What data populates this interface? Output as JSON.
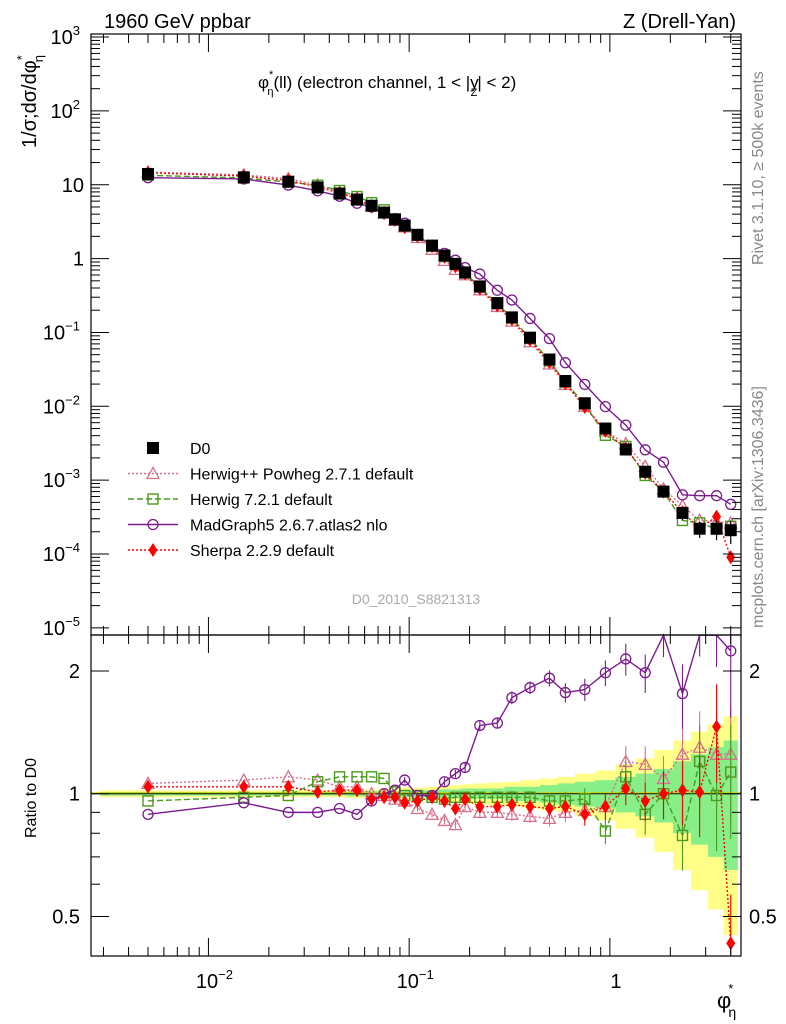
{
  "header": {
    "left_label": "1960 GeV ppbar",
    "right_label": "Z (Drell-Yan)",
    "plot_title": "φ*η(ll) (electron channel, 1 < |yZ| < 2)",
    "plot_title_phi": "φ",
    "plot_title_star": "*",
    "plot_title_eta": "η",
    "plot_title_mid": "(ll) (electron channel, 1 < |",
    "plot_title_y": "y",
    "plot_title_z": "Z",
    "plot_title_end": "| < 2)"
  },
  "side_labels": {
    "rivet": "Rivet 3.1.10, ≥ 500k events",
    "mcplots": "mcplots.cern.ch [arXiv:1306.3436]"
  },
  "watermark": "D0_2010_S8821313",
  "axes": {
    "top_ylabel": "1/σ;dσ/dφ*η",
    "top_ylabel_main": "1/σ;dσ/dφ",
    "top_ylabel_star": "*",
    "top_ylabel_eta": "η",
    "bottom_ylabel": "Ratio to D0",
    "xlabel_phi": "φ",
    "xlabel_star": "*",
    "xlabel_eta": "η",
    "x_ticks": [
      {
        "v": 0.01,
        "b": "10",
        "e": "−2"
      },
      {
        "v": 0.1,
        "b": "10",
        "e": "−1"
      },
      {
        "v": 1,
        "b": "1",
        "e": ""
      }
    ],
    "y_ticks_top": [
      {
        "v": 1e-05,
        "b": "10",
        "e": "−5"
      },
      {
        "v": 0.0001,
        "b": "10",
        "e": "−4"
      },
      {
        "v": 0.001,
        "b": "10",
        "e": "−3"
      },
      {
        "v": 0.01,
        "b": "10",
        "e": "−2"
      },
      {
        "v": 0.1,
        "b": "10",
        "e": "−1"
      },
      {
        "v": 1,
        "b": "1",
        "e": ""
      },
      {
        "v": 10,
        "b": "10",
        "e": ""
      },
      {
        "v": 100,
        "b": "10",
        "e": "2"
      },
      {
        "v": 1000,
        "b": "10",
        "e": "3"
      }
    ],
    "y_ticks_ratio": [
      "0.5",
      "1",
      "2"
    ]
  },
  "legend": [
    {
      "label": "D0",
      "color": "#000000",
      "marker": "square-filled"
    },
    {
      "label": "Herwig++ Powheg 2.7.1 default",
      "color": "#d66f8c",
      "marker": "triangle-open",
      "dash": "2,2"
    },
    {
      "label": "Herwig 7.2.1 default",
      "color": "#4a9a1c",
      "marker": "square-open",
      "dash": "6,3"
    },
    {
      "label": "MadGraph5 2.6.7.atlas2 nlo",
      "color": "#7b1c8e",
      "marker": "circle-open",
      "dash": ""
    },
    {
      "label": "Sherpa 2.2.9 default",
      "color": "#ff0000",
      "marker": "diamond-filled",
      "dash": "2,2"
    }
  ],
  "chart_data": {
    "type": "line",
    "log_x": true,
    "log_y_top": true,
    "log_y_ratio": true,
    "xlim": [
      0.0026,
      4.5
    ],
    "ylim_top": [
      8e-06,
      1100
    ],
    "ylim_ratio": [
      0.4,
      2.45
    ],
    "x": [
      0.005,
      0.015,
      0.025,
      0.035,
      0.045,
      0.055,
      0.065,
      0.075,
      0.085,
      0.095,
      0.11,
      0.13,
      0.15,
      0.17,
      0.19,
      0.225,
      0.275,
      0.325,
      0.4,
      0.5,
      0.6,
      0.75,
      0.95,
      1.2,
      1.5,
      1.85,
      2.3,
      2.8,
      3.4,
      4.0
    ],
    "data": {
      "name": "D0",
      "values": [
        14.0,
        12.6,
        11.0,
        9.2,
        7.6,
        6.3,
        5.2,
        4.2,
        3.4,
        2.8,
        2.1,
        1.5,
        1.1,
        0.85,
        0.65,
        0.42,
        0.25,
        0.16,
        0.085,
        0.043,
        0.022,
        0.011,
        0.005,
        0.0026,
        0.0013,
        0.0007,
        0.00036,
        0.00022,
        0.00022,
        0.00021
      ],
      "rel_uncertainty": [
        0.01,
        0.01,
        0.01,
        0.01,
        0.01,
        0.015,
        0.015,
        0.015,
        0.015,
        0.02,
        0.02,
        0.02,
        0.025,
        0.025,
        0.03,
        0.03,
        0.03,
        0.04,
        0.04,
        0.05,
        0.06,
        0.07,
        0.08,
        0.1,
        0.12,
        0.15,
        0.2,
        0.25,
        0.3,
        0.35
      ]
    },
    "series": [
      {
        "name": "Herwig++ Powheg 2.7.1 default",
        "ratio": [
          1.06,
          1.08,
          1.1,
          1.08,
          1.04,
          1.04,
          1.0,
          0.99,
          0.97,
          0.96,
          0.92,
          0.89,
          0.86,
          0.84,
          0.93,
          0.9,
          0.9,
          0.89,
          0.88,
          0.87,
          0.9,
          0.91,
          0.93,
          1.2,
          1.18,
          1.09,
          1.25,
          1.3,
          1.25,
          1.25
        ]
      },
      {
        "name": "Herwig 7.2.1 default",
        "ratio": [
          0.96,
          0.98,
          0.99,
          1.07,
          1.1,
          1.1,
          1.1,
          1.09,
          1.01,
          0.99,
          0.99,
          0.98,
          0.97,
          0.98,
          0.98,
          0.98,
          0.98,
          0.98,
          0.98,
          0.96,
          0.96,
          0.97,
          0.81,
          1.1,
          0.89,
          1.0,
          0.79,
          1.2,
          0.99,
          1.13
        ]
      },
      {
        "name": "MadGraph5 2.6.7.atlas2 nlo",
        "ratio": [
          0.89,
          0.95,
          0.9,
          0.9,
          0.92,
          0.89,
          0.96,
          1.0,
          1.02,
          1.08,
          0.99,
          0.99,
          1.07,
          1.12,
          1.16,
          1.47,
          1.49,
          1.72,
          1.82,
          1.92,
          1.77,
          1.8,
          1.98,
          2.14,
          1.98,
          2.5,
          1.76,
          2.8,
          2.8,
          2.24
        ]
      },
      {
        "name": "Sherpa 2.2.9 default",
        "ratio": [
          1.04,
          1.04,
          1.04,
          1.01,
          1.02,
          1.02,
          0.97,
          0.98,
          0.98,
          0.95,
          0.96,
          0.98,
          0.96,
          0.92,
          0.97,
          0.93,
          0.93,
          0.94,
          0.93,
          0.92,
          0.93,
          0.89,
          0.93,
          1.03,
          0.96,
          1.0,
          1.02,
          1.01,
          1.46,
          0.43
        ]
      }
    ],
    "ratio_band_inner": [
      0.01,
      0.01,
      0.01,
      0.01,
      0.01,
      0.015,
      0.015,
      0.015,
      0.015,
      0.02,
      0.02,
      0.02,
      0.025,
      0.025,
      0.03,
      0.03,
      0.03,
      0.04,
      0.04,
      0.05,
      0.06,
      0.07,
      0.08,
      0.1,
      0.12,
      0.15,
      0.2,
      0.25,
      0.3,
      0.35
    ],
    "ratio_band_outer": [
      0.02,
      0.02,
      0.02,
      0.02,
      0.02,
      0.025,
      0.025,
      0.03,
      0.03,
      0.035,
      0.035,
      0.04,
      0.045,
      0.05,
      0.055,
      0.06,
      0.065,
      0.07,
      0.08,
      0.09,
      0.1,
      0.12,
      0.14,
      0.18,
      0.22,
      0.28,
      0.35,
      0.42,
      0.48,
      0.55
    ]
  }
}
